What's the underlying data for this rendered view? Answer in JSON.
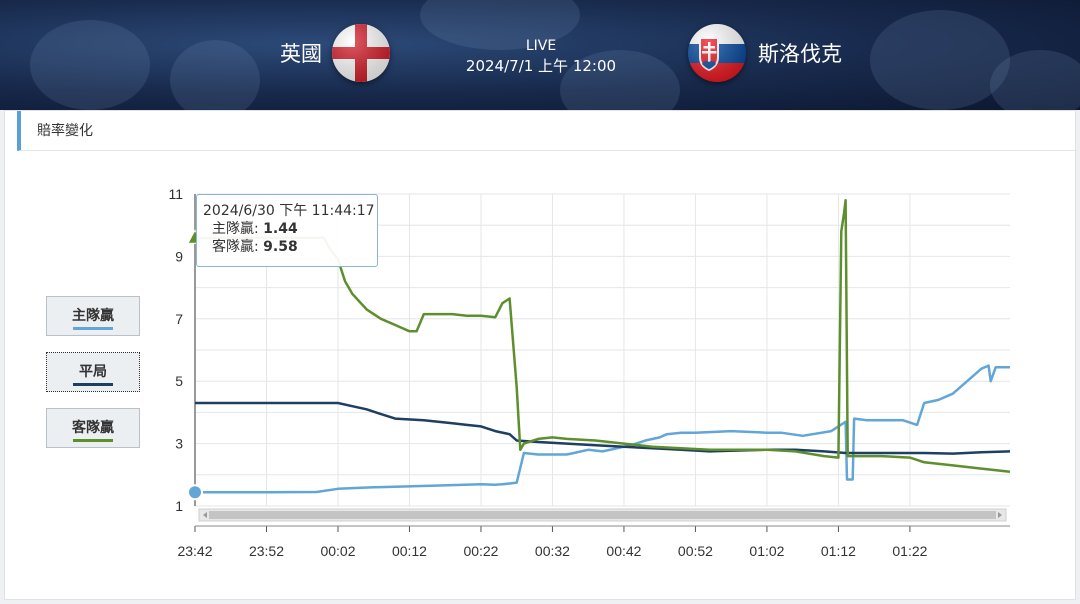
{
  "match": {
    "home_team": "英國",
    "away_team": "斯洛伐克",
    "status": "LIVE",
    "datetime": "2024/7/1 上午 12:00",
    "home_flag": "england-flag-icon",
    "away_flag": "slovakia-flag-icon"
  },
  "panel": {
    "title": "賠率變化"
  },
  "legend": [
    {
      "label": "主隊贏",
      "color": "#62a6d8"
    },
    {
      "label": "平局",
      "color": "#1e3f62"
    },
    {
      "label": "客隊贏",
      "color": "#5d8f2c"
    }
  ],
  "tooltip": {
    "time": "2024/6/30 下午 11:44:17",
    "home_label": "主隊贏:",
    "home_value": "1.44",
    "away_label": "客隊贏:",
    "away_value": "9.58"
  },
  "chart_data": {
    "type": "line",
    "x_unit": "minutes from 23:42",
    "x_ticks": [
      "23:42",
      "23:52",
      "00:02",
      "00:12",
      "00:22",
      "00:32",
      "00:42",
      "00:52",
      "01:02",
      "01:12",
      "01:22"
    ],
    "y_ticks": [
      "1",
      "3",
      "5",
      "7",
      "9",
      "11"
    ],
    "ylim": [
      1,
      11
    ],
    "grid": true,
    "series": [
      {
        "name": "主隊贏",
        "color": "#62a6d8",
        "points": [
          [
            0,
            1.44
          ],
          [
            10,
            1.44
          ],
          [
            17,
            1.45
          ],
          [
            20,
            1.55
          ],
          [
            25,
            1.6
          ],
          [
            33,
            1.65
          ],
          [
            40,
            1.7
          ],
          [
            42,
            1.68
          ],
          [
            43,
            1.7
          ],
          [
            44,
            1.72
          ],
          [
            45,
            1.75
          ],
          [
            46,
            2.7
          ],
          [
            48,
            2.65
          ],
          [
            52,
            2.65
          ],
          [
            53,
            2.7
          ],
          [
            55,
            2.8
          ],
          [
            57,
            2.75
          ],
          [
            59,
            2.85
          ],
          [
            61,
            2.95
          ],
          [
            63,
            3.1
          ],
          [
            65,
            3.2
          ],
          [
            66,
            3.3
          ],
          [
            68,
            3.35
          ],
          [
            70,
            3.35
          ],
          [
            75,
            3.4
          ],
          [
            80,
            3.35
          ],
          [
            82,
            3.35
          ],
          [
            85,
            3.25
          ],
          [
            89,
            3.4
          ],
          [
            90,
            3.55
          ],
          [
            91,
            3.7
          ],
          [
            91.2,
            1.85
          ],
          [
            92,
            1.85
          ],
          [
            92.2,
            3.8
          ],
          [
            94,
            3.75
          ],
          [
            97,
            3.75
          ],
          [
            99,
            3.75
          ],
          [
            101,
            3.6
          ],
          [
            102,
            4.3
          ],
          [
            104,
            4.4
          ],
          [
            106,
            4.6
          ],
          [
            108,
            5.0
          ],
          [
            110,
            5.4
          ],
          [
            111,
            5.5
          ],
          [
            111.3,
            5.0
          ],
          [
            112,
            5.45
          ],
          [
            114,
            5.45
          ]
        ]
      },
      {
        "name": "平局",
        "color": "#1e3f62",
        "points": [
          [
            0,
            4.3
          ],
          [
            20,
            4.3
          ],
          [
            22,
            4.2
          ],
          [
            24,
            4.1
          ],
          [
            26,
            3.95
          ],
          [
            28,
            3.8
          ],
          [
            32,
            3.75
          ],
          [
            34,
            3.7
          ],
          [
            36,
            3.65
          ],
          [
            38,
            3.6
          ],
          [
            40,
            3.55
          ],
          [
            42,
            3.4
          ],
          [
            44,
            3.3
          ],
          [
            45,
            3.1
          ],
          [
            48,
            3.05
          ],
          [
            52,
            3.0
          ],
          [
            56,
            2.95
          ],
          [
            60,
            2.9
          ],
          [
            64,
            2.85
          ],
          [
            68,
            2.8
          ],
          [
            72,
            2.75
          ],
          [
            76,
            2.78
          ],
          [
            80,
            2.8
          ],
          [
            84,
            2.8
          ],
          [
            88,
            2.75
          ],
          [
            91,
            2.7
          ],
          [
            94,
            2.7
          ],
          [
            98,
            2.7
          ],
          [
            102,
            2.7
          ],
          [
            106,
            2.68
          ],
          [
            110,
            2.72
          ],
          [
            114,
            2.75
          ]
        ]
      },
      {
        "name": "客隊贏",
        "color": "#5d8f2c",
        "points": [
          [
            0,
            9.58
          ],
          [
            10,
            9.6
          ],
          [
            18,
            9.6
          ],
          [
            19,
            9.2
          ],
          [
            20,
            8.9
          ],
          [
            21,
            8.2
          ],
          [
            22,
            7.8
          ],
          [
            24,
            7.3
          ],
          [
            26,
            7.0
          ],
          [
            28,
            6.8
          ],
          [
            30,
            6.6
          ],
          [
            31,
            6.6
          ],
          [
            32,
            7.15
          ],
          [
            36,
            7.15
          ],
          [
            38,
            7.1
          ],
          [
            40,
            7.1
          ],
          [
            42,
            7.05
          ],
          [
            43,
            7.5
          ],
          [
            44,
            7.65
          ],
          [
            45,
            4.8
          ],
          [
            45.5,
            2.8
          ],
          [
            46,
            3.0
          ],
          [
            48,
            3.15
          ],
          [
            50,
            3.2
          ],
          [
            52,
            3.15
          ],
          [
            56,
            3.1
          ],
          [
            60,
            3.0
          ],
          [
            64,
            2.9
          ],
          [
            68,
            2.85
          ],
          [
            72,
            2.8
          ],
          [
            76,
            2.8
          ],
          [
            80,
            2.8
          ],
          [
            84,
            2.75
          ],
          [
            88,
            2.6
          ],
          [
            90,
            2.55
          ],
          [
            90.4,
            9.8
          ],
          [
            90.8,
            10.4
          ],
          [
            91,
            10.8
          ],
          [
            91.3,
            2.6
          ],
          [
            92,
            2.6
          ],
          [
            96,
            2.6
          ],
          [
            100,
            2.55
          ],
          [
            102,
            2.4
          ],
          [
            106,
            2.3
          ],
          [
            110,
            2.2
          ],
          [
            114,
            2.1
          ]
        ]
      }
    ],
    "highlight": {
      "series": "主隊贏",
      "x": 0,
      "y": 1.44
    }
  }
}
